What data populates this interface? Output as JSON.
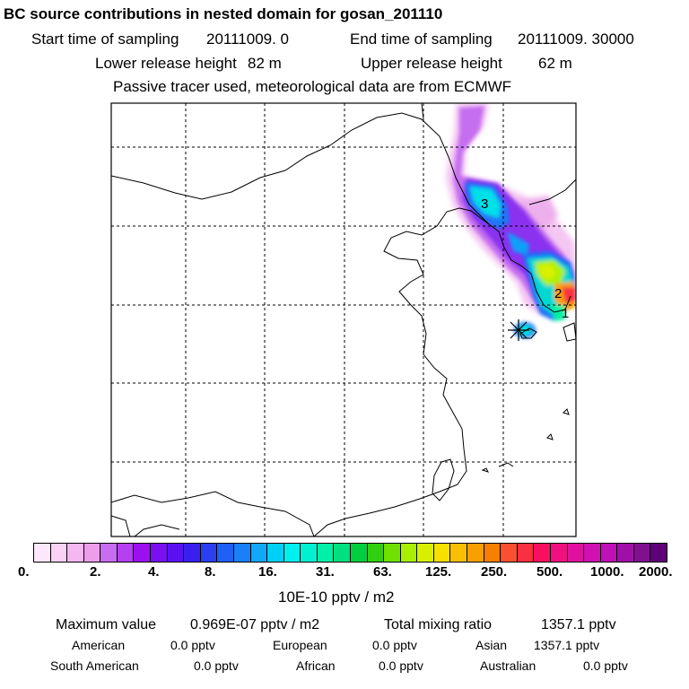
{
  "header": {
    "title": "BC  source contributions in nested domain for gosan_201110",
    "start_label": "Start time of sampling",
    "start_value": "20111009.     0",
    "end_label": "End time of sampling",
    "end_value": "20111009. 30000",
    "lower_label": "Lower release height",
    "lower_value": "82 m",
    "upper_label": "Upper release height",
    "upper_value": "62 m",
    "tracer_note": "Passive tracer used, meteorological data are from ECMWF"
  },
  "map": {
    "markers": [
      {
        "label": "3"
      },
      {
        "label": "2"
      },
      {
        "label": "1"
      }
    ],
    "release_site": "gosan"
  },
  "legend": {
    "ticks": [
      "0.",
      "2.",
      "4.",
      "8.",
      "16.",
      "31.",
      "63.",
      "125.",
      "250.",
      "500.",
      "1000.",
      "2000."
    ],
    "unit": "10E-10 pptv / m2",
    "colors": [
      "#fde8fb",
      "#f9d2f6",
      "#f3b8f0",
      "#ec9ee9",
      "#c86cf0",
      "#b540f2",
      "#9c10f0",
      "#7a10f0",
      "#5a10f0",
      "#3a20ef",
      "#2a40f0",
      "#1f60f5",
      "#1a80f8",
      "#10a8f8",
      "#00d0f8",
      "#00f0f0",
      "#00f0d0",
      "#00f0a8",
      "#00e080",
      "#00d040",
      "#30d010",
      "#70e000",
      "#a8f000",
      "#d8f000",
      "#f8e000",
      "#f8c000",
      "#f8a000",
      "#f88000",
      "#f85030",
      "#f83040",
      "#f81060",
      "#f01080",
      "#e010a0",
      "#d010b0",
      "#c010b8",
      "#a010a8",
      "#801090",
      "#600078"
    ]
  },
  "stats": {
    "max_label": "Maximum value",
    "max_value": "0.969E-07 pptv / m2",
    "total_label": "Total mixing ratio",
    "total_value": "1357.1 pptv",
    "sources": [
      {
        "name": "American",
        "value": "0.0 pptv"
      },
      {
        "name": "European",
        "value": "0.0 pptv"
      },
      {
        "name": "Asian",
        "value": "1357.1 pptv"
      },
      {
        "name": "South American",
        "value": "0.0 pptv"
      },
      {
        "name": "African",
        "value": "0.0 pptv"
      },
      {
        "name": "Australian",
        "value": "0.0 pptv"
      }
    ]
  }
}
